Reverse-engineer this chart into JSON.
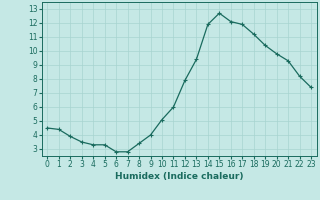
{
  "x": [
    0,
    1,
    2,
    3,
    4,
    5,
    6,
    7,
    8,
    9,
    10,
    11,
    12,
    13,
    14,
    15,
    16,
    17,
    18,
    19,
    20,
    21,
    22,
    23
  ],
  "y": [
    4.5,
    4.4,
    3.9,
    3.5,
    3.3,
    3.3,
    2.8,
    2.8,
    3.4,
    4.0,
    5.1,
    6.0,
    7.9,
    9.4,
    11.9,
    12.7,
    12.1,
    11.9,
    11.2,
    10.4,
    9.8,
    9.3,
    8.2,
    7.4
  ],
  "line_color": "#1a6b5e",
  "marker": "+",
  "marker_size": 3.5,
  "marker_lw": 0.8,
  "line_width": 0.9,
  "bg_color": "#c5e8e5",
  "grid_color": "#a8d4d0",
  "xlabel": "Humidex (Indice chaleur)",
  "ylabel_ticks": [
    3,
    4,
    5,
    6,
    7,
    8,
    9,
    10,
    11,
    12,
    13
  ],
  "xtick_labels": [
    "0",
    "1",
    "2",
    "3",
    "4",
    "5",
    "6",
    "7",
    "8",
    "9",
    "10",
    "11",
    "12",
    "13",
    "14",
    "15",
    "16",
    "17",
    "18",
    "19",
    "20",
    "21",
    "22",
    "23"
  ],
  "xlim": [
    -0.5,
    23.5
  ],
  "ylim": [
    2.5,
    13.5
  ],
  "tick_fontsize": 5.5,
  "xlabel_fontsize": 6.5
}
